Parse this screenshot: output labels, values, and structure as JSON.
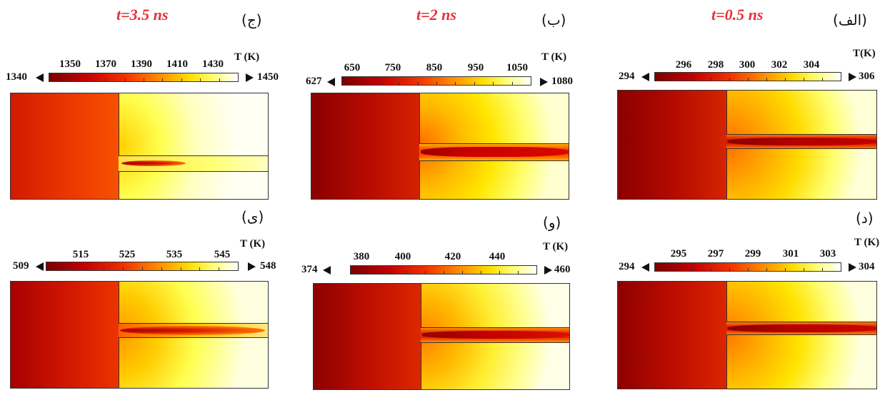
{
  "unit_label_default": "T (K)",
  "panels": [
    {
      "id": "alef",
      "tag": "(الف)",
      "time": "t=0.5 ns",
      "unit": "T(K)",
      "min": "294",
      "max": "306",
      "ticks": [
        "296",
        "298",
        "300",
        "302",
        "304"
      ]
    },
    {
      "id": "be",
      "tag": "(ب)",
      "time": "t=2 ns",
      "unit": "T (K)",
      "min": "627",
      "max": "1080",
      "ticks": [
        "650",
        "750",
        "850",
        "950",
        "1050"
      ]
    },
    {
      "id": "jim",
      "tag": "(ج)",
      "time": "t=3.5 ns",
      "unit": "T (K)",
      "min": "1340",
      "max": "1450",
      "ticks": [
        "1350",
        "1370",
        "1390",
        "1410",
        "1430"
      ]
    },
    {
      "id": "dal",
      "tag": "(د)",
      "time": "",
      "unit": "T (K)",
      "min": "294",
      "max": "304",
      "ticks": [
        "295",
        "297",
        "299",
        "301",
        "303"
      ]
    },
    {
      "id": "vav",
      "tag": "(و)",
      "time": "",
      "unit": "T (K)",
      "min": "374",
      "max": "460",
      "ticks": [
        "380",
        "400",
        "420",
        "440"
      ]
    },
    {
      "id": "ye",
      "tag": "(ی)",
      "time": "",
      "unit": "T (K)",
      "min": "509",
      "max": "548",
      "ticks": [
        "515",
        "525",
        "535",
        "545"
      ]
    }
  ],
  "colors": {
    "title_red": "#e8303a",
    "hot_core": "#9a0000"
  },
  "colormap": "heat (dark red → yellow → white)"
}
